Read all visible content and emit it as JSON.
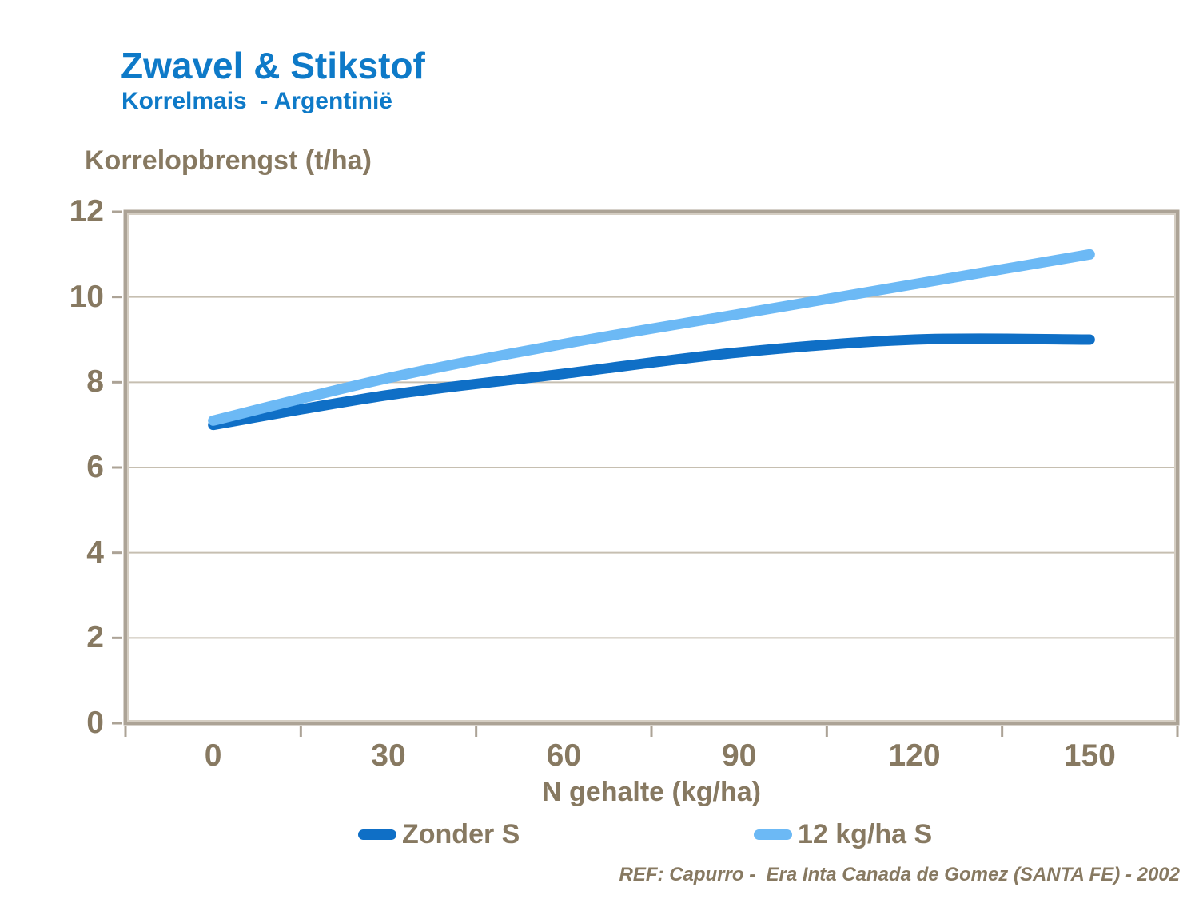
{
  "header": {
    "title": "Zwavel & Stikstof",
    "subtitle": "Korrelmais  - Argentinië"
  },
  "chart": {
    "y_axis_title": "Korrelopbrengst (t/ha)",
    "x_axis_title": "N gehalte (kg/ha)"
  },
  "footer": {
    "reference": "REF: Capurro -  Era Inta Canada de Gomez (SANTA FE) - 2002"
  },
  "chart_data": {
    "type": "line",
    "title": "Zwavel & Stikstof",
    "subtitle": "Korrelmais - Argentinië",
    "xlabel": "N gehalte (kg/ha)",
    "ylabel": "Korrelopbrengst (t/ha)",
    "x": [
      0,
      30,
      60,
      90,
      120,
      150
    ],
    "xtick_labels": [
      "0",
      "30",
      "60",
      "90",
      "120",
      "150"
    ],
    "yticks": [
      0,
      2,
      4,
      6,
      8,
      10,
      12
    ],
    "ylim": [
      0,
      12
    ],
    "xlim_categories": 6,
    "grid": "horizontal",
    "line_smoothing": true,
    "legend_position": "bottom",
    "series": [
      {
        "name": "Zonder S",
        "color": "#0F6FC6",
        "values": [
          7.0,
          7.7,
          8.2,
          8.7,
          9.0,
          9.0
        ]
      },
      {
        "name": "12 kg/ha S",
        "color": "#6CB9F5",
        "values": [
          7.1,
          8.1,
          8.9,
          9.6,
          10.3,
          11.0
        ]
      }
    ]
  },
  "colors": {
    "title_blue": "#0E7AC8",
    "text_brown": "#877961",
    "axis_border_dark": "#ACA396",
    "axis_border_light": "#D5CEC3",
    "gridline": "#C6BFB1",
    "background": "#FFFFFF",
    "series_zonder_s": "#0F6FC6",
    "series_12kg_s": "#6CB9F5"
  }
}
